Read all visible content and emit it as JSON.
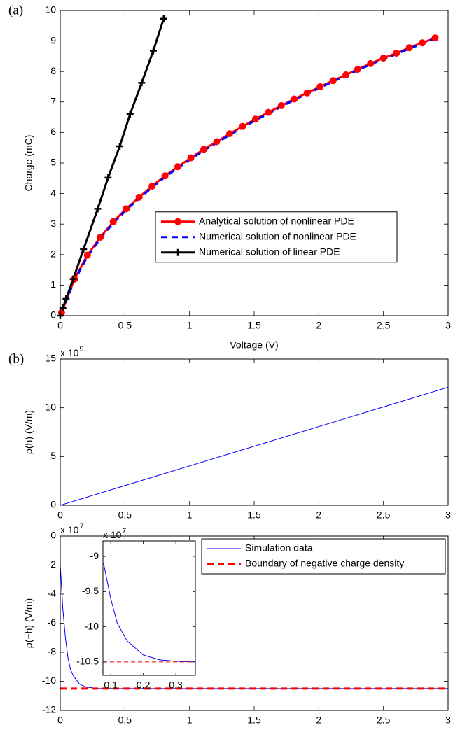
{
  "chart_data": [
    {
      "type": "line",
      "panel_label": "(a)",
      "xlabel": "Voltage (V)",
      "ylabel": "Charge (mC)",
      "xlim": [
        0,
        3
      ],
      "ylim": [
        0,
        10
      ],
      "xticks": [
        0,
        0.5,
        1,
        1.5,
        2,
        2.5,
        3
      ],
      "yticks": [
        0,
        1,
        2,
        3,
        4,
        5,
        6,
        7,
        8,
        9,
        10
      ],
      "legend": "center right",
      "x": [
        0.01,
        0.11,
        0.21,
        0.31,
        0.41,
        0.51,
        0.61,
        0.71,
        0.81,
        0.91,
        1.01,
        1.11,
        1.21,
        1.31,
        1.41,
        1.51,
        1.61,
        1.71,
        1.81,
        1.91,
        2.01,
        2.11,
        2.21,
        2.3,
        2.4,
        2.5,
        2.6,
        2.7,
        2.8,
        2.9
      ],
      "series": [
        {
          "name": "Analytical solution of nonlinear PDE",
          "color": "#ff0000",
          "marker": "circle",
          "dash": false,
          "values": [
            0.1,
            1.2,
            1.98,
            2.57,
            3.08,
            3.5,
            3.88,
            4.24,
            4.58,
            4.88,
            5.17,
            5.45,
            5.7,
            5.96,
            6.2,
            6.44,
            6.66,
            6.88,
            7.1,
            7.3,
            7.5,
            7.7,
            7.89,
            8.07,
            8.26,
            8.44,
            8.6,
            8.78,
            8.94,
            9.1
          ]
        },
        {
          "name": "Numerical solution of nonlinear PDE",
          "color": "#0000ff",
          "dash": true,
          "values": [
            0.1,
            1.15,
            1.93,
            2.53,
            3.03,
            3.46,
            3.84,
            4.2,
            4.54,
            4.84,
            5.13,
            5.41,
            5.66,
            5.92,
            6.16,
            6.4,
            6.62,
            6.85,
            7.07,
            7.27,
            7.47,
            7.67,
            7.86,
            8.04,
            8.23,
            8.41,
            8.57,
            8.75,
            8.91,
            9.08
          ]
        },
        {
          "name": "Numerical solution of linear PDE",
          "color": "#000000",
          "marker": "plus",
          "dash": false,
          "x": [
            0,
            0.02,
            0.045,
            0.1,
            0.18,
            0.29,
            0.37,
            0.46,
            0.54,
            0.63,
            0.72,
            0.8
          ],
          "values": [
            0,
            0.25,
            0.55,
            1.2,
            2.18,
            3.5,
            4.52,
            5.55,
            6.6,
            7.63,
            8.68,
            9.73
          ]
        }
      ]
    },
    {
      "type": "line",
      "panel_label": "(b)",
      "ylabel": "ρ(h) (V/m)",
      "y_multiplier": {
        "text": "x 10",
        "exponent": 9
      },
      "xlim": [
        0,
        3
      ],
      "ylim": [
        0,
        15
      ],
      "xticks": [
        0,
        0.5,
        1,
        1.5,
        2,
        2.5,
        3
      ],
      "yticks": [
        0,
        5,
        10,
        15
      ],
      "x": [
        0,
        3
      ],
      "series": [
        {
          "color": "#0000ff",
          "dash": false,
          "values": [
            0,
            12.1
          ]
        }
      ]
    },
    {
      "type": "line",
      "xlabel": "Voltage (V)",
      "ylabel": "ρ(−h) (V/m)",
      "y_multiplier": {
        "text": "x 10",
        "exponent": 7
      },
      "xlim": [
        0,
        3
      ],
      "ylim": [
        -12,
        0
      ],
      "xticks": [
        0,
        0.5,
        1,
        1.5,
        2,
        2.5,
        3
      ],
      "yticks": [
        -12,
        -10,
        -8,
        -6,
        -4,
        -2,
        0
      ],
      "legend": "upper right",
      "series": [
        {
          "name": "Simulation data",
          "color": "#0000ff",
          "dash": false,
          "x": [
            0,
            0.02,
            0.04,
            0.06,
            0.08,
            0.1,
            0.15,
            0.2,
            0.3,
            3
          ],
          "values": [
            -2,
            -5,
            -7,
            -8.4,
            -9.2,
            -9.6,
            -10.2,
            -10.4,
            -10.5,
            -10.5
          ]
        },
        {
          "name": "Boundary of negative charge density",
          "color": "#ff0000",
          "dash": true,
          "width": 3,
          "x": [
            0,
            3
          ],
          "values": [
            -10.5,
            -10.5
          ]
        }
      ]
    },
    {
      "type": "line",
      "inset": true,
      "y_multiplier": {
        "text": "x 10",
        "exponent": 7
      },
      "xlim": [
        0.076,
        0.36
      ],
      "ylim": [
        -10.69,
        -8.78
      ],
      "xticks": [
        0.1,
        0.2,
        0.3
      ],
      "yticks": [
        -10.5,
        -10,
        -9.5,
        -9
      ],
      "series": [
        {
          "color": "#0000ff",
          "dash": false,
          "x": [
            0.078,
            0.1,
            0.12,
            0.15,
            0.2,
            0.25,
            0.3,
            0.36
          ],
          "values": [
            -9.1,
            -9.6,
            -9.95,
            -10.2,
            -10.4,
            -10.47,
            -10.49,
            -10.5
          ]
        },
        {
          "color": "#ff0000",
          "dash": true,
          "width": 1,
          "x": [
            0.076,
            0.36
          ],
          "values": [
            -10.5,
            -10.5
          ]
        }
      ]
    }
  ]
}
